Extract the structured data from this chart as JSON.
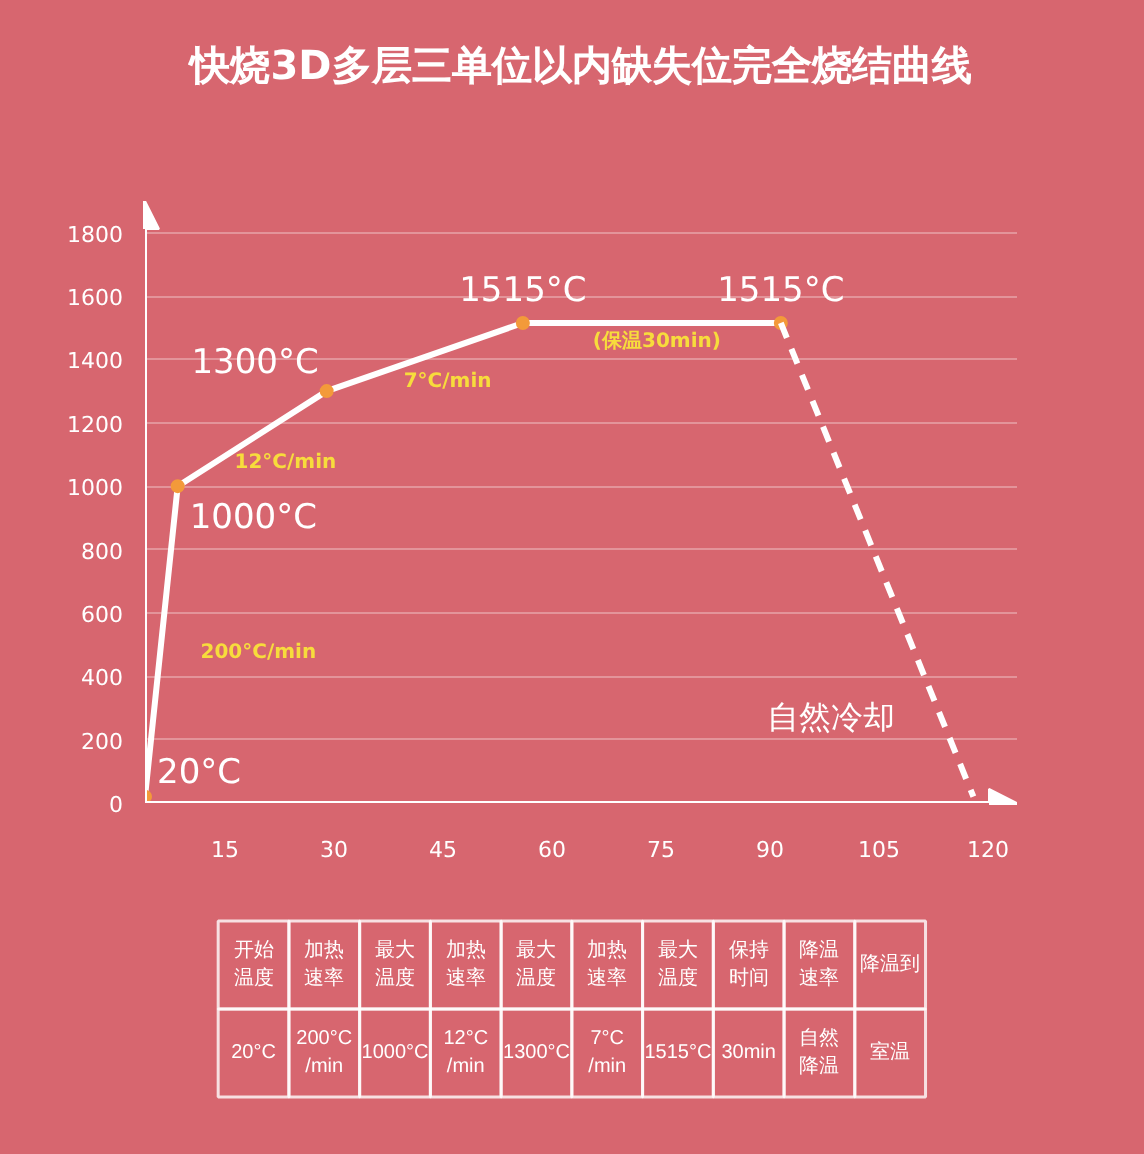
{
  "chart_data": {
    "type": "line",
    "title": "快烧3D多层三单位以内缺失位完全烧结曲线",
    "xlim": [
      4,
      124
    ],
    "xticks": [
      15,
      30,
      45,
      60,
      75,
      90,
      105,
      120
    ],
    "ylim": [
      0,
      1900
    ],
    "yticks": [
      0,
      200,
      400,
      600,
      800,
      1000,
      1200,
      1400,
      1600,
      1800
    ],
    "grid": "y",
    "marker": "circle",
    "line_style": "solid",
    "series": [
      {
        "color": "#ffffff",
        "x": [
          4,
          8.5,
          29,
          56,
          91.5
        ],
        "values": [
          20,
          1000,
          1300,
          1515,
          1515
        ],
        "value_labels": [
          "20°C",
          "1000°C",
          "1300°C",
          "1515°C",
          "1515°C"
        ]
      },
      {
        "color": "#ffffff",
        "x": [
          91.5,
          118
        ],
        "values": [
          1515,
          20
        ],
        "line_style": "dashed",
        "marker": "none"
      }
    ],
    "annotations": [
      "200°C/min",
      "12°C/min",
      "7°C/min",
      "(保温30min)",
      "自然冷却",
      "开始温度",
      "加热速率",
      "最大温度",
      "加热速率",
      "最大温度",
      "加热速率",
      "最大温度",
      "保持时间",
      "降温速率",
      "降温到",
      "20°C",
      "200°C\n/min",
      "1000°C",
      "12°C\n/min",
      "1300°C",
      "7°C\n/min",
      "1515°C",
      "30min",
      "自然降温",
      "室温"
    ]
  }
}
